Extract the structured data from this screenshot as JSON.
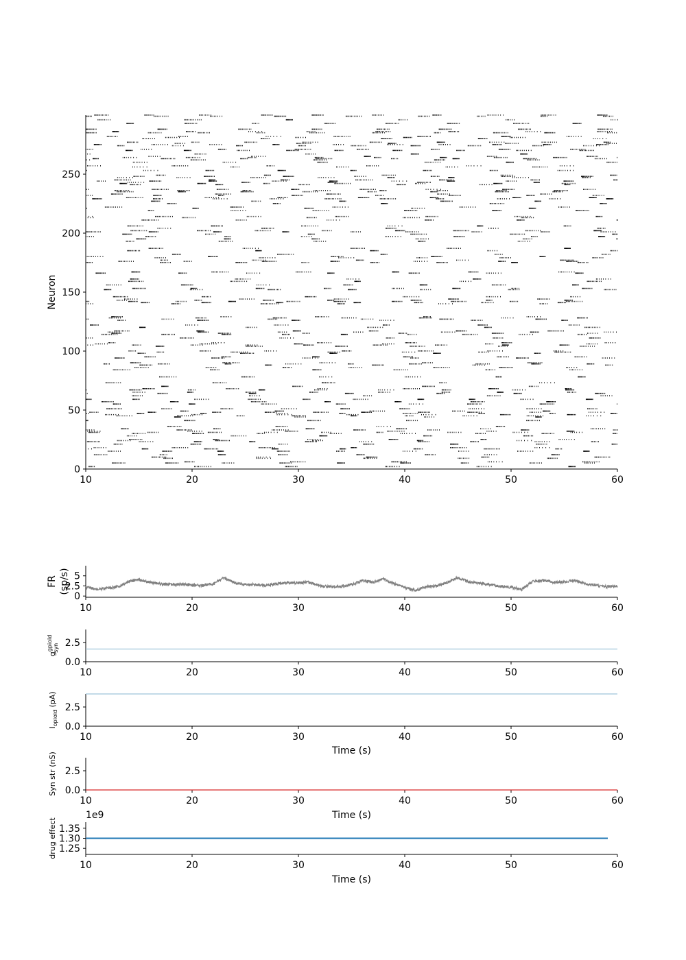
{
  "chart_data": [
    {
      "type": "scatter",
      "subtype": "raster",
      "ylabel": "Neuron",
      "xlim": [
        10,
        60
      ],
      "ylim": [
        0,
        300
      ],
      "xticks": [
        10,
        20,
        30,
        40,
        50,
        60
      ],
      "yticks": [
        0,
        50,
        100,
        150,
        200,
        250
      ],
      "color": "#000000"
    },
    {
      "type": "line",
      "ylabel": "FR\n(sp/s)",
      "ylabel_lines": [
        "FR",
        "(sp/s)"
      ],
      "xlim": [
        10,
        60
      ],
      "ylim": [
        -0.3,
        7.5
      ],
      "xticks": [
        10,
        20,
        30,
        40,
        50,
        60
      ],
      "yticks": [
        0,
        2.5,
        5
      ],
      "ytick_labels": [
        "0",
        "2.5",
        "5"
      ],
      "color": "#808080",
      "series": [
        {
          "x": [
            10,
            11,
            12,
            13,
            14,
            15,
            16,
            17,
            18,
            19,
            20,
            21,
            22,
            23,
            24,
            25,
            26,
            27,
            28,
            29,
            30,
            31,
            32,
            33,
            34,
            35,
            36,
            37,
            38,
            39,
            40,
            41,
            42,
            43,
            44,
            45,
            46,
            47,
            48,
            49,
            50,
            51,
            52,
            53,
            54,
            55,
            56,
            57,
            58,
            59,
            60
          ],
          "values": [
            2.2,
            1.7,
            1.9,
            2.3,
            3.6,
            4.0,
            3.4,
            3.0,
            2.8,
            2.9,
            2.7,
            2.6,
            3.0,
            4.5,
            3.3,
            2.9,
            2.8,
            2.6,
            3.0,
            3.2,
            3.3,
            3.4,
            2.5,
            2.3,
            2.4,
            2.8,
            3.8,
            3.4,
            4.2,
            3.0,
            2.1,
            1.4,
            2.3,
            2.5,
            3.4,
            4.5,
            3.5,
            3.2,
            2.9,
            2.4,
            2.2,
            1.6,
            3.6,
            3.8,
            3.4,
            3.5,
            3.9,
            3.0,
            2.6,
            2.3,
            2.5
          ]
        }
      ]
    },
    {
      "type": "line",
      "ylabel": "g_syn^gpiold",
      "ylabel_main": "g",
      "ylabel_sub": "syn",
      "ylabel_sup": "gpiold",
      "xlim": [
        10,
        60
      ],
      "ylim": [
        0,
        4.2
      ],
      "xticks": [
        10,
        20,
        30,
        40,
        50,
        60
      ],
      "yticks": [
        0,
        2.5
      ],
      "ytick_labels": [
        "0.0",
        "2.5"
      ],
      "color": "#9ec4da",
      "series": [
        {
          "x": [
            10,
            60
          ],
          "values": [
            1.65,
            1.65
          ]
        }
      ]
    },
    {
      "type": "line",
      "ylabel": "I_opioid (pA)",
      "ylabel_main": "I",
      "ylabel_sub": "opioid",
      "ylabel_unit": " (pA)",
      "xlabel": "Time (s)",
      "xlim": [
        10,
        60
      ],
      "ylim": [
        0,
        4.2
      ],
      "xticks": [
        10,
        20,
        30,
        40,
        50,
        60
      ],
      "yticks": [
        0,
        2.5
      ],
      "ytick_labels": [
        "0.0",
        "2.5"
      ],
      "color": "#9ec4da",
      "series": [
        {
          "x": [
            10,
            60
          ],
          "values": [
            4.2,
            4.2
          ]
        }
      ]
    },
    {
      "type": "line",
      "ylabel": "Syn str (nS)",
      "xlabel": "Time (s)",
      "xlim": [
        10,
        60
      ],
      "ylim": [
        0,
        4.2
      ],
      "xticks": [
        10,
        20,
        30,
        40,
        50,
        60
      ],
      "yticks": [
        0,
        2.5
      ],
      "ytick_labels": [
        "0.0",
        "2.5"
      ],
      "color": "#d62728",
      "series": [
        {
          "x": [
            10,
            60
          ],
          "values": [
            0.0,
            0.0
          ]
        }
      ]
    },
    {
      "type": "line",
      "ylabel": "drug effect",
      "xlabel": "Time (s)",
      "offset_text": "1e9",
      "xlim": [
        10,
        60
      ],
      "ylim": [
        1.22,
        1.38
      ],
      "xticks": [
        10,
        20,
        30,
        40,
        50,
        60
      ],
      "yticks": [
        1.25,
        1.3,
        1.35
      ],
      "ytick_labels": [
        "1.25",
        "1.30",
        "1.35"
      ],
      "color": "#1f77b4",
      "series": [
        {
          "x": [
            10,
            59.1
          ],
          "values": [
            1.3,
            1.3
          ]
        }
      ]
    }
  ]
}
